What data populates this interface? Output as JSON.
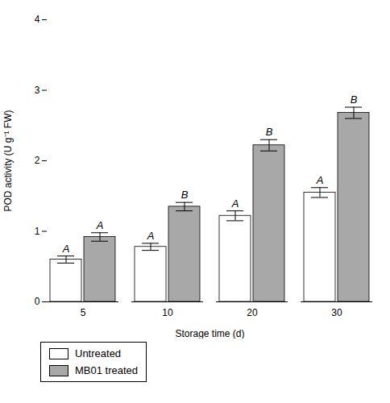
{
  "chart_data": {
    "type": "bar",
    "categories": [
      "5",
      "10",
      "20",
      "30"
    ],
    "series": [
      {
        "name": "Untreated",
        "color": "#ffffff",
        "values": [
          0.6,
          0.78,
          1.22,
          1.55
        ],
        "errors": [
          0.05,
          0.05,
          0.07,
          0.07
        ],
        "letters": [
          "A",
          "A",
          "A",
          "A"
        ]
      },
      {
        "name": "MB01 treated",
        "color": "#a8a8a8",
        "values": [
          0.92,
          1.35,
          2.22,
          2.68
        ],
        "errors": [
          0.06,
          0.06,
          0.08,
          0.08
        ],
        "letters": [
          "A",
          "B",
          "B",
          "B"
        ]
      }
    ],
    "xlabel": "Storage time (d)",
    "ylabel": "POD activity (U g⁻¹ FW)",
    "ylim": [
      0,
      4
    ],
    "yticks": [
      0,
      1,
      2,
      3,
      4
    ],
    "grid": false,
    "legend": "bottom"
  }
}
